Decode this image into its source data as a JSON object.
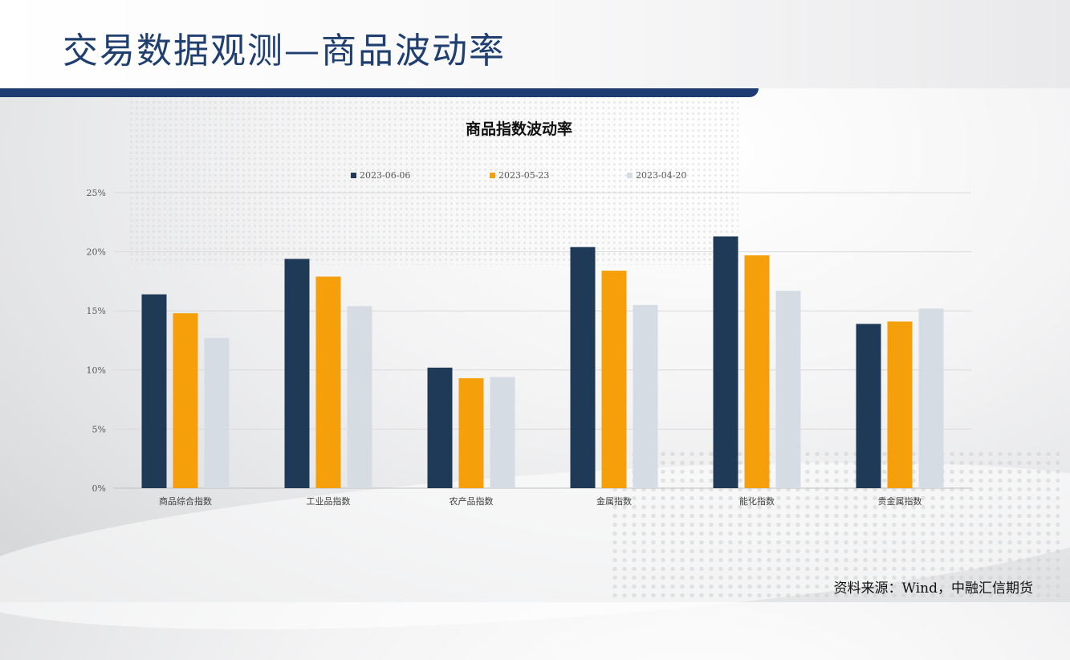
{
  "page": {
    "title": "交易数据观测—商品波动率",
    "source": "资料来源：Wind，中融汇信期货"
  },
  "colors": {
    "title": "#1f3f70",
    "rule": "#1d3d72"
  },
  "chart_data": {
    "type": "bar",
    "title": "商品指数波动率",
    "xlabel": "",
    "ylabel": "",
    "categories": [
      "商品综合指数",
      "工业品指数",
      "农产品指数",
      "金属指数",
      "能化指数",
      "贵金属指数"
    ],
    "series": [
      {
        "name": "2023-06-06",
        "color": "#1f3a57",
        "values": [
          16.4,
          19.4,
          10.2,
          20.4,
          21.3,
          13.9
        ]
      },
      {
        "name": "2023-05-23",
        "color": "#f5a00a",
        "values": [
          14.8,
          17.9,
          9.3,
          18.4,
          19.7,
          14.1
        ]
      },
      {
        "name": "2023-04-20",
        "color": "#d6dce4",
        "values": [
          12.7,
          15.4,
          9.4,
          15.5,
          16.7,
          15.2
        ]
      }
    ],
    "y_ticks": [
      "0%",
      "5%",
      "10%",
      "15%",
      "20%",
      "25%"
    ],
    "ylim": [
      0,
      25
    ],
    "grid": true,
    "legend_position": "top"
  }
}
